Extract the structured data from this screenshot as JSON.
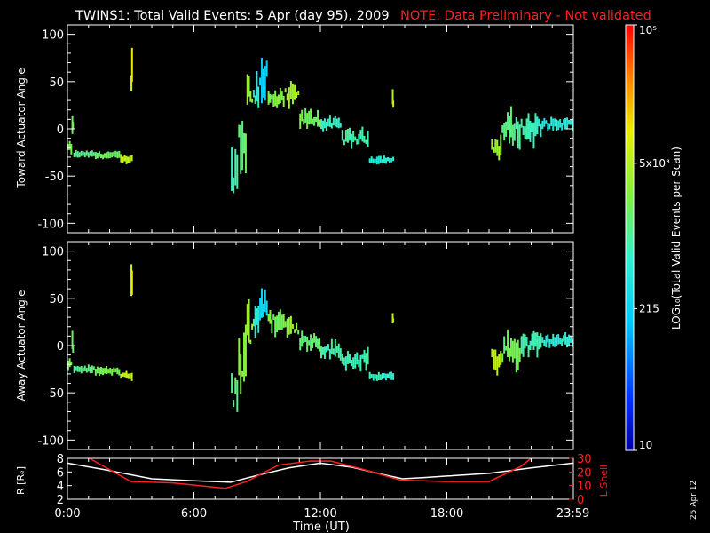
{
  "title_main": "TWINS1: Total Valid Events:  5 Apr (day  95), 2009",
  "title_note": "NOTE: Data Preliminary - Not validated",
  "footer_date": "25 Apr 12",
  "colors": {
    "background": "#000000",
    "axis": "#ffffff",
    "note": "#ff2020",
    "r_line": "#ffffff",
    "l_line": "#ff2020"
  },
  "colorbar": {
    "label": "LOG₁₀(Total Valid Events per Scan)",
    "tick_labels": [
      "10",
      "215",
      "5x10³",
      "10⁵"
    ],
    "tick_values": [
      10,
      215,
      5000,
      100000
    ],
    "range": [
      10,
      100000
    ],
    "scale": "log",
    "colormap": "rainbow blue-cyan-green-yellow-red"
  },
  "time_axis": {
    "label": "Time (UT)",
    "tick_labels": [
      "0:00",
      "6:00",
      "12:00",
      "18:00",
      "23:59"
    ],
    "tick_hours": [
      0,
      6,
      12,
      18,
      23.983
    ],
    "range": [
      0,
      24
    ]
  },
  "chart_data": [
    {
      "type": "heatmap",
      "ylabel": "Toward Actuator Angle",
      "ylim": [
        -110,
        110
      ],
      "yticks": [
        -100,
        -50,
        0,
        50,
        100
      ],
      "xlabel": "",
      "series": [
        {
          "t0": 0.0,
          "t1": 0.22,
          "center": -20,
          "spread": 8,
          "count": 2000
        },
        {
          "t0": 0.22,
          "t1": 0.28,
          "center": 0,
          "spread": 20,
          "count": 2000
        },
        {
          "t0": 0.28,
          "t1": 1.3,
          "center": -27,
          "spread": 4,
          "count": 1200
        },
        {
          "t0": 1.3,
          "t1": 2.5,
          "center": -28,
          "spread": 5,
          "count": 2000
        },
        {
          "t0": 2.5,
          "t1": 3.1,
          "center": -32,
          "spread": 5,
          "count": 6000
        },
        {
          "t0": 3.02,
          "t1": 3.08,
          "center": 60,
          "spread": 40,
          "count": 8000
        },
        {
          "t0": 7.75,
          "t1": 8.1,
          "center": -45,
          "spread": 50,
          "count": 800
        },
        {
          "t0": 8.1,
          "t1": 8.5,
          "center": -10,
          "spread": 70,
          "count": 1500
        },
        {
          "t0": 8.5,
          "t1": 8.8,
          "center": 35,
          "spread": 55,
          "count": 3000
        },
        {
          "t0": 8.8,
          "t1": 9.1,
          "center": 40,
          "spread": 40,
          "count": 500
        },
        {
          "t0": 9.1,
          "t1": 9.5,
          "center": 55,
          "spread": 45,
          "count": 200
        },
        {
          "t0": 9.5,
          "t1": 10.3,
          "center": 30,
          "spread": 20,
          "count": 2500
        },
        {
          "t0": 10.3,
          "t1": 11.0,
          "center": 35,
          "spread": 20,
          "count": 4000
        },
        {
          "t0": 11.0,
          "t1": 12.0,
          "center": 10,
          "spread": 15,
          "count": 2000
        },
        {
          "t0": 12.0,
          "t1": 13.0,
          "center": 5,
          "spread": 10,
          "count": 700
        },
        {
          "t0": 13.0,
          "t1": 14.3,
          "center": -10,
          "spread": 15,
          "count": 800
        },
        {
          "t0": 14.3,
          "t1": 15.5,
          "center": -33,
          "spread": 5,
          "count": 600
        },
        {
          "t0": 15.42,
          "t1": 15.47,
          "center": 30,
          "spread": 15,
          "count": 6000
        },
        {
          "t0": 20.1,
          "t1": 20.6,
          "center": -20,
          "spread": 20,
          "count": 3500
        },
        {
          "t0": 20.6,
          "t1": 21.5,
          "center": 0,
          "spread": 30,
          "count": 1200
        },
        {
          "t0": 21.5,
          "t1": 22.5,
          "center": 0,
          "spread": 25,
          "count": 800
        },
        {
          "t0": 22.5,
          "t1": 24.0,
          "center": 5,
          "spread": 10,
          "count": 500
        }
      ]
    },
    {
      "type": "heatmap",
      "ylabel": "Away Actuator Angle",
      "ylim": [
        -110,
        110
      ],
      "yticks": [
        -100,
        -50,
        0,
        50,
        100
      ],
      "xlabel": "",
      "series": [
        {
          "t0": 0.0,
          "t1": 0.22,
          "center": -20,
          "spread": 8,
          "count": 2000
        },
        {
          "t0": 0.22,
          "t1": 0.28,
          "center": 0,
          "spread": 20,
          "count": 2000
        },
        {
          "t0": 0.28,
          "t1": 1.3,
          "center": -25,
          "spread": 4,
          "count": 1200
        },
        {
          "t0": 1.3,
          "t1": 2.5,
          "center": -27,
          "spread": 5,
          "count": 2000
        },
        {
          "t0": 2.5,
          "t1": 3.1,
          "center": -32,
          "spread": 5,
          "count": 6000
        },
        {
          "t0": 3.02,
          "t1": 3.08,
          "center": 60,
          "spread": 40,
          "count": 8000
        },
        {
          "t0": 7.75,
          "t1": 8.1,
          "center": -50,
          "spread": 45,
          "count": 1500
        },
        {
          "t0": 8.1,
          "t1": 8.5,
          "center": -20,
          "spread": 60,
          "count": 2500
        },
        {
          "t0": 8.5,
          "t1": 8.8,
          "center": 20,
          "spread": 55,
          "count": 3000
        },
        {
          "t0": 8.8,
          "t1": 9.1,
          "center": 30,
          "spread": 35,
          "count": 700
        },
        {
          "t0": 9.1,
          "t1": 9.5,
          "center": 45,
          "spread": 40,
          "count": 250
        },
        {
          "t0": 9.5,
          "t1": 10.3,
          "center": 25,
          "spread": 20,
          "count": 2500
        },
        {
          "t0": 10.3,
          "t1": 11.0,
          "center": 20,
          "spread": 20,
          "count": 3000
        },
        {
          "t0": 11.0,
          "t1": 12.0,
          "center": 5,
          "spread": 15,
          "count": 1500
        },
        {
          "t0": 12.0,
          "t1": 13.0,
          "center": -5,
          "spread": 15,
          "count": 800
        },
        {
          "t0": 13.0,
          "t1": 14.3,
          "center": -15,
          "spread": 15,
          "count": 900
        },
        {
          "t0": 14.3,
          "t1": 15.5,
          "center": -33,
          "spread": 5,
          "count": 700
        },
        {
          "t0": 15.42,
          "t1": 15.47,
          "center": 30,
          "spread": 15,
          "count": 6000
        },
        {
          "t0": 20.1,
          "t1": 20.6,
          "center": -15,
          "spread": 25,
          "count": 5000
        },
        {
          "t0": 20.6,
          "t1": 21.5,
          "center": -5,
          "spread": 30,
          "count": 2000
        },
        {
          "t0": 21.5,
          "t1": 22.5,
          "center": 0,
          "spread": 25,
          "count": 900
        },
        {
          "t0": 22.5,
          "t1": 24.0,
          "center": 5,
          "spread": 10,
          "count": 600
        }
      ]
    },
    {
      "type": "line",
      "ylabel": "R [Rₑ]",
      "ylabel_right": "L Shell",
      "ylim": [
        2,
        8
      ],
      "yticks": [
        2,
        4,
        6,
        8
      ],
      "ylim_right": [
        0,
        30
      ],
      "yticks_right": [
        0,
        10,
        20,
        30
      ],
      "series": [
        {
          "name": "R",
          "axis": "left",
          "x": [
            0,
            2,
            4,
            6,
            7.75,
            9,
            10.5,
            12,
            13.5,
            15,
            15.9,
            17,
            18,
            20,
            22,
            23.983
          ],
          "y": [
            7.3,
            6.2,
            5.0,
            4.7,
            4.5,
            5.5,
            6.6,
            7.3,
            6.7,
            5.6,
            5.0,
            5.2,
            5.4,
            5.8,
            6.6,
            7.3
          ]
        },
        {
          "name": "L Shell",
          "axis": "right",
          "x": [
            1.05,
            3,
            5,
            7.5,
            8.5,
            10,
            11.5,
            12.5,
            14,
            15.8,
            18,
            20,
            21.5,
            22
          ],
          "y": [
            30,
            13,
            12,
            8,
            13,
            25,
            28,
            28,
            22,
            14,
            13,
            13,
            24,
            30
          ]
        }
      ]
    }
  ]
}
